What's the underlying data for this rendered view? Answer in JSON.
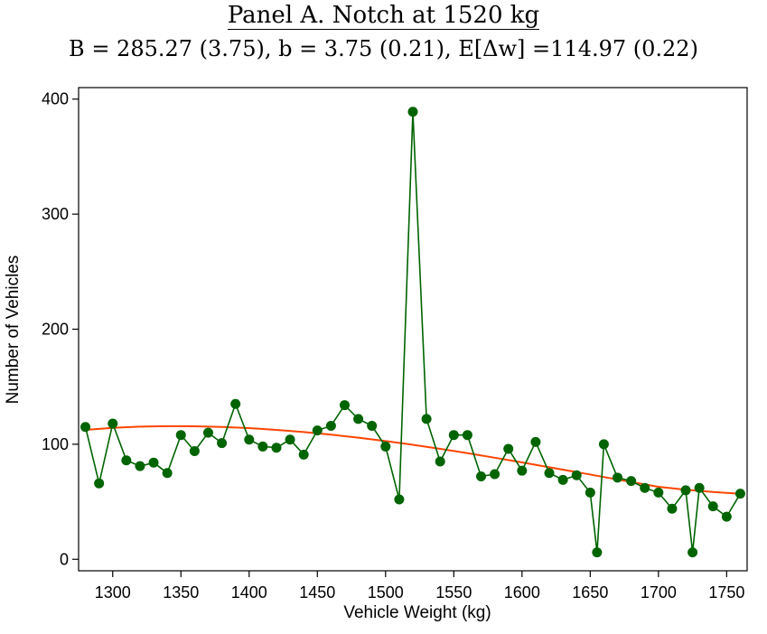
{
  "header": {
    "title": "Panel A. Notch at 1520 kg",
    "subtitle": "B = 285.27 (3.75), b = 3.75 (0.21), E[Δw] =114.97 (0.22)"
  },
  "colors": {
    "observed": "#006400",
    "fit": "#ff4500",
    "axis": "#000000"
  },
  "chart_data": {
    "type": "line",
    "xlabel": "Vehicle Weight (kg)",
    "ylabel": "Number of Vehicles",
    "xlim": [
      1275,
      1765
    ],
    "ylim": [
      -10,
      410
    ],
    "xticks": [
      1300,
      1350,
      1400,
      1450,
      1500,
      1550,
      1600,
      1650,
      1700,
      1750
    ],
    "yticks": [
      0,
      100,
      200,
      300,
      400
    ],
    "grid": false,
    "legend": "none",
    "series": [
      {
        "style": "line-markers",
        "x": [
          1280,
          1290,
          1300,
          1310,
          1320,
          1330,
          1340,
          1350,
          1360,
          1370,
          1380,
          1390,
          1400,
          1410,
          1420,
          1430,
          1440,
          1450,
          1460,
          1470,
          1480,
          1490,
          1500,
          1510,
          1520,
          1530,
          1540,
          1550,
          1560,
          1570,
          1580,
          1590,
          1600,
          1610,
          1620,
          1630,
          1640,
          1650,
          1655,
          1660,
          1670,
          1680,
          1690,
          1700,
          1710,
          1720,
          1725,
          1730,
          1740,
          1750,
          1760
        ],
        "y": [
          115,
          66,
          118,
          86,
          81,
          84,
          75,
          108,
          94,
          110,
          101,
          135,
          104,
          98,
          97,
          104,
          91,
          112,
          116,
          134,
          122,
          116,
          98,
          52,
          389,
          122,
          85,
          108,
          108,
          72,
          74,
          96,
          77,
          102,
          75,
          69,
          73,
          58,
          6,
          100,
          71,
          68,
          62,
          58,
          44,
          60,
          6,
          62,
          46,
          37,
          57
        ]
      },
      {
        "style": "line",
        "x": [
          1280,
          1300,
          1320,
          1340,
          1360,
          1380,
          1400,
          1420,
          1440,
          1460,
          1480,
          1500,
          1520,
          1540,
          1560,
          1580,
          1600,
          1620,
          1640,
          1660,
          1680,
          1700,
          1720,
          1740,
          1760
        ],
        "y": [
          112.5,
          114.3,
          115.3,
          115.7,
          115.6,
          115.0,
          114.0,
          112.5,
          110.6,
          108.3,
          105.7,
          102.7,
          99.5,
          96.0,
          92.3,
          88.3,
          84.2,
          80.0,
          75.8,
          71.5,
          67.2,
          63.0,
          60.5,
          58.5,
          57.0
        ]
      }
    ]
  }
}
